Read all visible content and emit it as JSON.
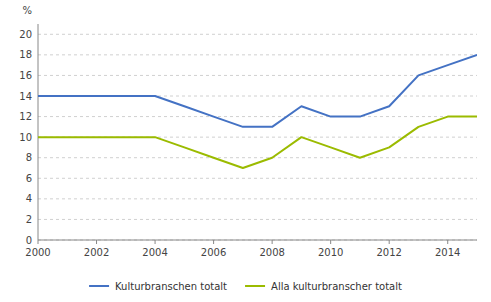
{
  "chart_data": {
    "type": "line",
    "y_label": "%",
    "x": [
      2000,
      2001,
      2002,
      2003,
      2004,
      2005,
      2006,
      2007,
      2008,
      2009,
      2010,
      2011,
      2012,
      2013,
      2014,
      2015
    ],
    "series": [
      {
        "name": "Kulturbranschen totalt",
        "color": "#4472C4",
        "values": [
          14,
          14,
          14,
          14,
          14,
          13,
          12,
          11,
          11,
          13,
          12,
          12,
          13,
          16,
          17,
          18
        ]
      },
      {
        "name": "Alla kulturbranscher totalt",
        "color": "#9BBB00",
        "values": [
          10,
          10,
          10,
          10,
          10,
          9,
          8,
          7,
          8,
          10,
          9,
          8,
          9,
          11,
          12,
          12
        ]
      }
    ],
    "xlim": [
      2000,
      2015
    ],
    "xticks": [
      2000,
      2002,
      2004,
      2006,
      2008,
      2010,
      2012,
      2014
    ],
    "ylim": [
      0,
      21
    ],
    "yticks": [
      0,
      2,
      4,
      6,
      8,
      10,
      12,
      14,
      16,
      18,
      20
    ],
    "grid": true,
    "legend": "bottom"
  }
}
